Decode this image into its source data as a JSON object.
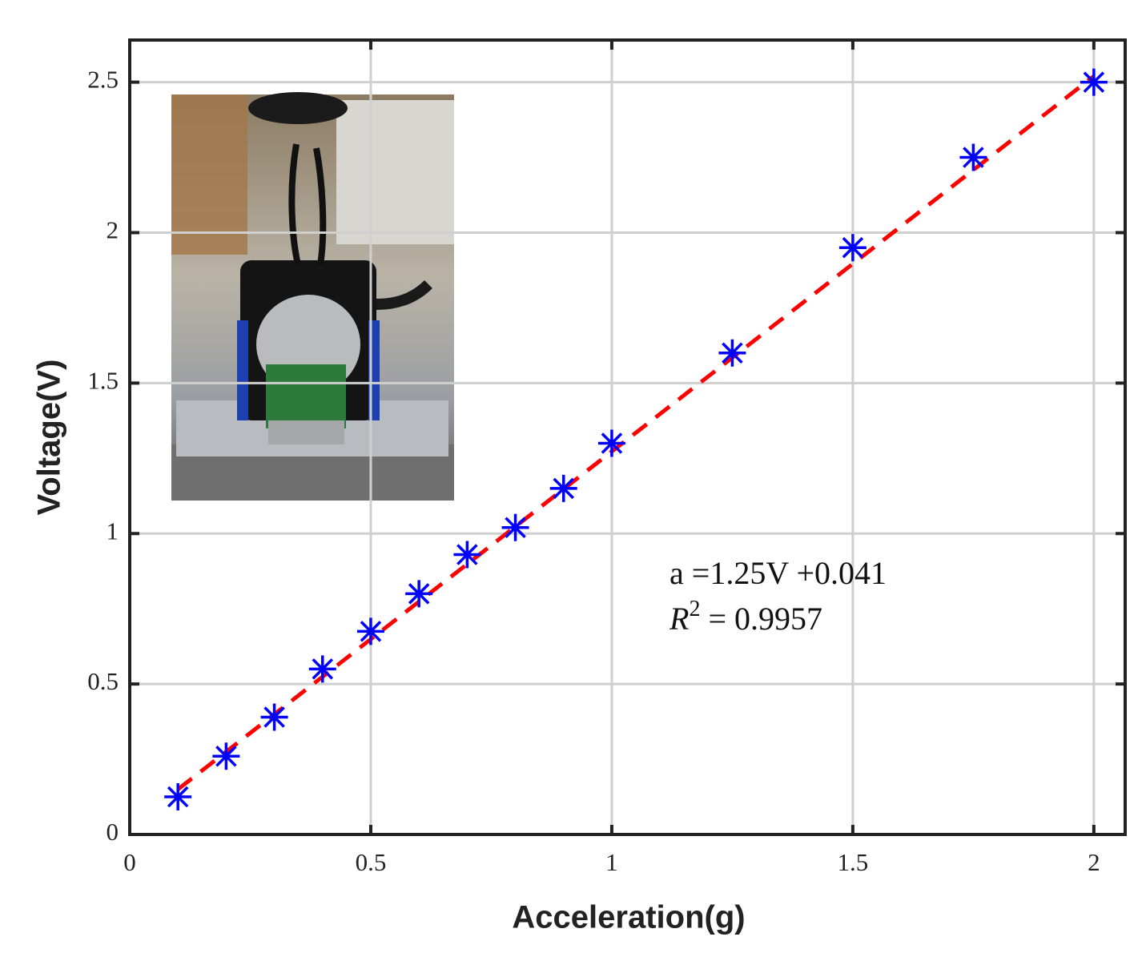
{
  "chart_data": {
    "type": "scatter",
    "x_label": "Acceleration(g)",
    "y_label": "Voltage(V)",
    "xlim": [
      0,
      2.065
    ],
    "ylim": [
      0,
      2.64
    ],
    "xticks": [
      0,
      0.5,
      1,
      1.5,
      2
    ],
    "yticks": [
      0,
      0.5,
      1,
      1.5,
      2,
      2.5
    ],
    "grid": true,
    "series": [
      {
        "color": "#0000ff",
        "marker": "asterisk",
        "x": [
          0.1,
          0.2,
          0.3,
          0.4,
          0.5,
          0.6,
          0.7,
          0.8,
          0.9,
          1,
          1.25,
          1.5,
          1.75,
          2
        ],
        "values": [
          0.125,
          0.26,
          0.39,
          0.55,
          0.675,
          0.8,
          0.93,
          1.02,
          1.15,
          1.3,
          1.6,
          1.95,
          2.25,
          2.5
        ]
      },
      {
        "color": "#ff0000",
        "linestyle": "dashed",
        "x": [
          0.1,
          2
        ],
        "values": [
          0.15,
          2.52
        ]
      }
    ],
    "annotation_fit": "a =1.25V +0.041",
    "annotation_r2": {
      "symbol": "R",
      "exponent": "2",
      "text": "= 0.9957"
    }
  }
}
